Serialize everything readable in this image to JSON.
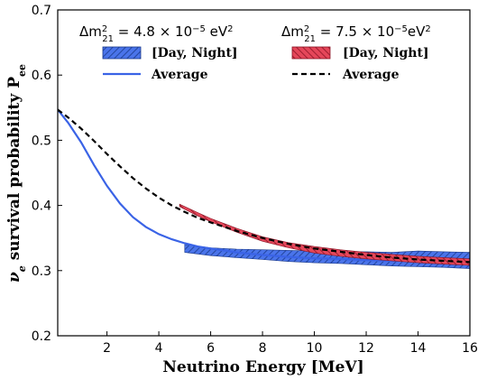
{
  "chart_data": {
    "type": "area",
    "xlabel": "Neutrino Energy [MeV]",
    "ylabel_main": "ν",
    "ylabel_sub": "e",
    "ylabel_rest": " survival probability P",
    "ylabel_rest_sub": "ee",
    "xlim": [
      0.1,
      16
    ],
    "ylim": [
      0.2,
      0.7
    ],
    "x_ticks": [
      2,
      4,
      6,
      8,
      10,
      12,
      14,
      16
    ],
    "y_ticks": [
      0.2,
      0.3,
      0.4,
      0.5,
      0.6,
      0.7
    ],
    "x_tick_labels": [
      "2",
      "4",
      "6",
      "8",
      "10",
      "12",
      "14",
      "16"
    ],
    "y_tick_labels": [
      "0.2",
      "0.3",
      "0.4",
      "0.5",
      "0.6",
      "0.7"
    ],
    "legend": {
      "placement": "top",
      "groups": [
        {
          "header_prefix": "Δm",
          "header_sup": "2",
          "header_sub": "21",
          "header_value": " = 4.8 × 10",
          "header_exp": "−5",
          "header_unit": " eV",
          "header_unit_sup": "2",
          "band_label": "[Day, Night]",
          "line_label": "Average"
        },
        {
          "header_prefix": "Δm",
          "header_sup": "2",
          "header_sub": "21",
          "header_value": " = 7.5 × 10",
          "header_exp": "−5",
          "header_unit": "eV",
          "header_unit_sup": "2",
          "band_label": "[Day, Night]",
          "line_label": "Average"
        }
      ]
    },
    "series": [
      {
        "kind": "band",
        "color": "#2f5fe0",
        "x": [
          5,
          6,
          7,
          8,
          9,
          10,
          11,
          12,
          13,
          14,
          15,
          16
        ],
        "lower": [
          0.328,
          0.323,
          0.32,
          0.317,
          0.314,
          0.312,
          0.311,
          0.309,
          0.307,
          0.306,
          0.305,
          0.303
        ],
        "upper": [
          0.34,
          0.335,
          0.333,
          0.332,
          0.331,
          0.33,
          0.329,
          0.329,
          0.328,
          0.33,
          0.329,
          0.328
        ]
      },
      {
        "kind": "line",
        "color": "#3a63e6",
        "style": "solid",
        "x": [
          0.1,
          0.5,
          1,
          1.5,
          2,
          2.5,
          3,
          3.5,
          4,
          4.5,
          5,
          5.5,
          6,
          7,
          8,
          9,
          10,
          11,
          12,
          13,
          14,
          15,
          16
        ],
        "y": [
          0.547,
          0.527,
          0.497,
          0.462,
          0.43,
          0.403,
          0.382,
          0.367,
          0.356,
          0.348,
          0.342,
          0.337,
          0.334,
          0.328,
          0.324,
          0.321,
          0.319,
          0.318,
          0.316,
          0.315,
          0.315,
          0.314,
          0.313
        ]
      },
      {
        "kind": "band",
        "color": "#e03a4e",
        "x": [
          4.8,
          5.5,
          6,
          7,
          8,
          9,
          10,
          11,
          12,
          13,
          14,
          15,
          16
        ],
        "lower": [
          0.398,
          0.384,
          0.375,
          0.359,
          0.345,
          0.335,
          0.327,
          0.322,
          0.318,
          0.315,
          0.312,
          0.31,
          0.308
        ],
        "upper": [
          0.402,
          0.389,
          0.38,
          0.365,
          0.352,
          0.343,
          0.337,
          0.332,
          0.328,
          0.325,
          0.322,
          0.32,
          0.318
        ]
      },
      {
        "kind": "line",
        "color": "#000000",
        "style": "dashed",
        "x": [
          0.1,
          0.5,
          1,
          1.5,
          2,
          2.5,
          3,
          3.5,
          4,
          4.5,
          5,
          5.5,
          6,
          7,
          8,
          9,
          10,
          11,
          12,
          13,
          14,
          15,
          16
        ],
        "y": [
          0.547,
          0.535,
          0.518,
          0.499,
          0.479,
          0.46,
          0.442,
          0.426,
          0.412,
          0.4,
          0.39,
          0.381,
          0.374,
          0.361,
          0.35,
          0.341,
          0.334,
          0.329,
          0.324,
          0.32,
          0.317,
          0.315,
          0.313
        ]
      }
    ]
  }
}
